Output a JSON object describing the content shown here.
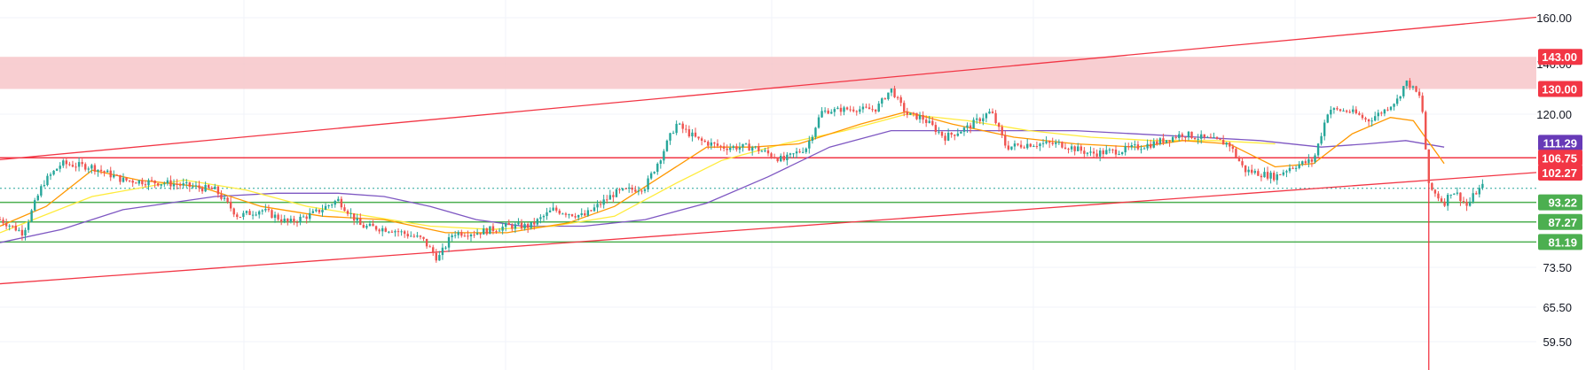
{
  "colors": {
    "background": "#ffffff",
    "grid": "#f0f3fa",
    "up": "#26a69a",
    "down": "#ef5350",
    "trendline": "#f23645",
    "zone_fill": "#f7c5c9",
    "support": "#4caf50",
    "resistance": "#f23645",
    "dotted": "#26a69a",
    "ma_fast": "#ff9800",
    "ma_mid": "#ffeb3b",
    "ma_slow": "#7e57c2",
    "badge_red": "#f23645",
    "badge_green": "#4caf50",
    "badge_purple": "#673ab7",
    "axis_text": "#131722"
  },
  "chart_data": {
    "type": "candlestick",
    "y_axis": {
      "ticks": [
        "160.00",
        "140.00",
        "120.00",
        "73.50",
        "65.50",
        "59.50"
      ],
      "ylim": [
        55,
        165
      ]
    },
    "x_range": [
      0,
      1000
    ],
    "price_labels": [
      {
        "label": "143.00",
        "value": 143.0,
        "color": "badge_red"
      },
      {
        "label": "130.00",
        "value": 130.0,
        "color": "badge_red"
      },
      {
        "label": "111.29",
        "value": 111.29,
        "color": "badge_purple"
      },
      {
        "label": "106.75",
        "value": 106.75,
        "color": "badge_red"
      },
      {
        "label": "102.27",
        "value": 102.27,
        "color": "badge_red"
      },
      {
        "label": "93.22",
        "value": 93.22,
        "color": "badge_green"
      },
      {
        "label": "87.27",
        "value": 87.27,
        "color": "badge_green"
      },
      {
        "label": "81.19",
        "value": 81.19,
        "color": "badge_green"
      }
    ],
    "zone": {
      "from": 130.0,
      "to": 143.0
    },
    "horizontal_lines": [
      {
        "value": 106.75,
        "color": "resistance"
      },
      {
        "value": 93.22,
        "color": "support"
      },
      {
        "value": 87.27,
        "color": "support"
      },
      {
        "value": 81.19,
        "color": "support"
      }
    ],
    "dotted_line": {
      "value": 97.5
    },
    "trendlines": [
      {
        "from": [
          0,
          106.2
        ],
        "to": [
          1000,
          160.2
        ]
      },
      {
        "from": [
          0,
          70.2
        ],
        "to": [
          1000,
          102.3
        ]
      }
    ],
    "vertical_line": {
      "x": 930
    },
    "anchors": [
      [
        0,
        88
      ],
      [
        15,
        84
      ],
      [
        28,
        99
      ],
      [
        40,
        105
      ],
      [
        60,
        104
      ],
      [
        80,
        100
      ],
      [
        110,
        99
      ],
      [
        140,
        97
      ],
      [
        155,
        89
      ],
      [
        170,
        91
      ],
      [
        188,
        87
      ],
      [
        205,
        90
      ],
      [
        220,
        94
      ],
      [
        235,
        86
      ],
      [
        255,
        85
      ],
      [
        275,
        82
      ],
      [
        285,
        76
      ],
      [
        295,
        84
      ],
      [
        310,
        84
      ],
      [
        330,
        86
      ],
      [
        345,
        86
      ],
      [
        360,
        91
      ],
      [
        380,
        89
      ],
      [
        400,
        96
      ],
      [
        420,
        98
      ],
      [
        430,
        107
      ],
      [
        440,
        117
      ],
      [
        455,
        112
      ],
      [
        470,
        110
      ],
      [
        490,
        110
      ],
      [
        510,
        106
      ],
      [
        525,
        110
      ],
      [
        535,
        121
      ],
      [
        550,
        122
      ],
      [
        570,
        122
      ],
      [
        580,
        130
      ],
      [
        590,
        120
      ],
      [
        600,
        119
      ],
      [
        615,
        113
      ],
      [
        630,
        116
      ],
      [
        645,
        121
      ],
      [
        655,
        110
      ],
      [
        670,
        111
      ],
      [
        690,
        111
      ],
      [
        710,
        108
      ],
      [
        730,
        109
      ],
      [
        750,
        111
      ],
      [
        770,
        114
      ],
      [
        790,
        112
      ],
      [
        800,
        111
      ],
      [
        810,
        103
      ],
      [
        830,
        101
      ],
      [
        840,
        104
      ],
      [
        855,
        106
      ],
      [
        865,
        122
      ],
      [
        880,
        121
      ],
      [
        890,
        118
      ],
      [
        900,
        121
      ],
      [
        910,
        126
      ],
      [
        915,
        133
      ],
      [
        920,
        130
      ],
      [
        925,
        126
      ],
      [
        930,
        98
      ],
      [
        940,
        93
      ],
      [
        945,
        97
      ],
      [
        950,
        95
      ],
      [
        955,
        92
      ],
      [
        960,
        96
      ],
      [
        965,
        98
      ]
    ],
    "ma_fast": [
      [
        0,
        86
      ],
      [
        30,
        92
      ],
      [
        60,
        103
      ],
      [
        90,
        100
      ],
      [
        130,
        98
      ],
      [
        170,
        92
      ],
      [
        210,
        89
      ],
      [
        250,
        88
      ],
      [
        290,
        84
      ],
      [
        330,
        84
      ],
      [
        370,
        87
      ],
      [
        400,
        92
      ],
      [
        430,
        101
      ],
      [
        460,
        110
      ],
      [
        490,
        110
      ],
      [
        520,
        111
      ],
      [
        560,
        117
      ],
      [
        590,
        121
      ],
      [
        620,
        117
      ],
      [
        660,
        113
      ],
      [
        700,
        111
      ],
      [
        740,
        110
      ],
      [
        770,
        112
      ],
      [
        800,
        111
      ],
      [
        830,
        104
      ],
      [
        855,
        105
      ],
      [
        880,
        114
      ],
      [
        905,
        119
      ],
      [
        920,
        118
      ],
      [
        940,
        105
      ]
    ],
    "ma_mid": [
      [
        0,
        84
      ],
      [
        60,
        95
      ],
      [
        120,
        100
      ],
      [
        160,
        97
      ],
      [
        200,
        92
      ],
      [
        240,
        89
      ],
      [
        280,
        86
      ],
      [
        320,
        85
      ],
      [
        360,
        86
      ],
      [
        400,
        89
      ],
      [
        440,
        99
      ],
      [
        470,
        106
      ],
      [
        510,
        111
      ],
      [
        550,
        115
      ],
      [
        590,
        120
      ],
      [
        630,
        118
      ],
      [
        670,
        115
      ],
      [
        710,
        113
      ],
      [
        750,
        112
      ],
      [
        790,
        112
      ],
      [
        830,
        111
      ]
    ],
    "ma_slow": [
      [
        0,
        81
      ],
      [
        40,
        85
      ],
      [
        80,
        91
      ],
      [
        140,
        95
      ],
      [
        180,
        96
      ],
      [
        220,
        96
      ],
      [
        250,
        95
      ],
      [
        280,
        92
      ],
      [
        310,
        88
      ],
      [
        340,
        86
      ],
      [
        380,
        86
      ],
      [
        420,
        88
      ],
      [
        460,
        93
      ],
      [
        500,
        101
      ],
      [
        540,
        110
      ],
      [
        580,
        115
      ],
      [
        620,
        115
      ],
      [
        660,
        115
      ],
      [
        700,
        115
      ],
      [
        740,
        114
      ],
      [
        780,
        113
      ],
      [
        820,
        112
      ],
      [
        860,
        110
      ],
      [
        890,
        111
      ],
      [
        915,
        112
      ],
      [
        940,
        110
      ]
    ]
  }
}
